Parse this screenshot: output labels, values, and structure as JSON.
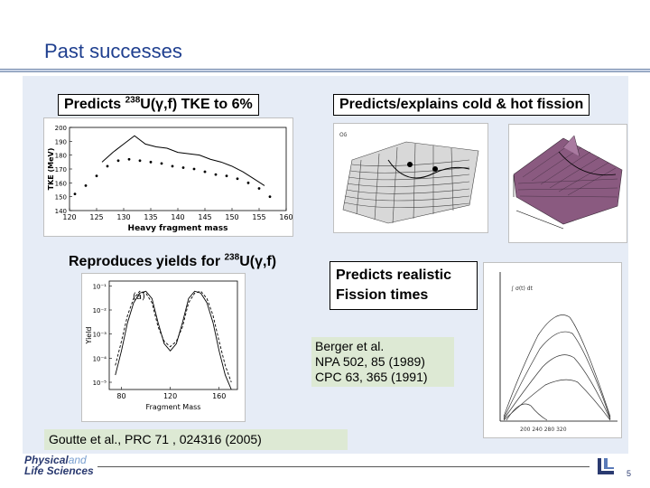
{
  "title": "Past successes",
  "labels": {
    "tke_pre": "Predicts ",
    "tke_sup": "238",
    "tke_post": "U(γ,f) TKE to 6%",
    "coldhot": "Predicts/explains cold & hot fission",
    "yields_pre": "Reproduces yields for ",
    "yields_sup": "238",
    "yields_post": "U(γ,f)",
    "realistic_1": "Predicts realistic",
    "realistic_2": "Fission times"
  },
  "references": {
    "berger_1": "Berger et al.",
    "berger_2": "NPA 502, 85 (1989)",
    "berger_3": "CPC 63, 365 (1991)",
    "goutte": "Goutte et al., PRC 71 , 024316  (2005)"
  },
  "footer": {
    "logo_line1": "Physical",
    "logo_and": "and",
    "logo_line2": "Life Sciences",
    "page_number": "5"
  },
  "chart_data": [
    {
      "type": "scatter",
      "title": "",
      "xlabel": "Heavy fragment mass",
      "ylabel": "TKE (MeV)",
      "xlim": [
        120,
        160
      ],
      "ylim": [
        140,
        200
      ],
      "xticks": [
        120,
        125,
        130,
        135,
        140,
        145,
        150,
        155,
        160
      ],
      "yticks": [
        140,
        150,
        160,
        170,
        180,
        190,
        200
      ],
      "series": [
        {
          "x": [
            126,
            128,
            130,
            132,
            134,
            136,
            138,
            140,
            142,
            144,
            146,
            148,
            150,
            152,
            154,
            156
          ],
          "y": [
            175,
            182,
            188,
            194,
            188,
            186,
            185,
            182,
            181,
            180,
            177,
            175,
            172,
            168,
            163,
            158
          ]
        },
        {
          "x": [
            121,
            123,
            125,
            127,
            129,
            131,
            133,
            135,
            137,
            139,
            141,
            143,
            145,
            147,
            149,
            151,
            153,
            155,
            157
          ],
          "y": [
            152,
            158,
            165,
            172,
            176,
            177,
            176,
            175,
            174,
            172,
            171,
            170,
            168,
            166,
            165,
            163,
            160,
            156,
            150
          ]
        }
      ]
    },
    {
      "type": "line",
      "title": "",
      "annotation": "(a)",
      "xlabel": "Fragment Mass",
      "ylabel": "Yield",
      "xlim": [
        70,
        175
      ],
      "yticks": [
        "10⁻¹",
        "10⁻²",
        "10⁻³",
        "10⁻⁴",
        "10⁻⁵"
      ],
      "xticks": [
        80,
        120,
        160
      ],
      "series": [
        {
          "x": [
            75,
            80,
            85,
            90,
            95,
            100,
            105,
            110,
            115,
            120,
            125,
            130,
            135,
            140,
            145,
            150,
            155,
            160,
            165,
            170
          ],
          "y": [
            2e-05,
            0.0002,
            0.003,
            0.02,
            0.05,
            0.06,
            0.03,
            0.003,
            0.0004,
            0.0002,
            0.0004,
            0.003,
            0.03,
            0.06,
            0.05,
            0.02,
            0.003,
            0.0002,
            2e-05,
            5e-06
          ]
        },
        {
          "x": [
            75,
            80,
            85,
            90,
            95,
            100,
            105,
            110,
            115,
            120,
            125,
            130,
            135,
            140,
            145,
            150,
            155,
            160,
            165,
            170
          ],
          "y": [
            5e-05,
            0.0005,
            0.006,
            0.03,
            0.06,
            0.05,
            0.02,
            0.002,
            0.0005,
            0.0003,
            0.0005,
            0.002,
            0.02,
            0.05,
            0.06,
            0.03,
            0.006,
            0.0005,
            5e-05,
            1e-05
          ]
        }
      ]
    }
  ]
}
